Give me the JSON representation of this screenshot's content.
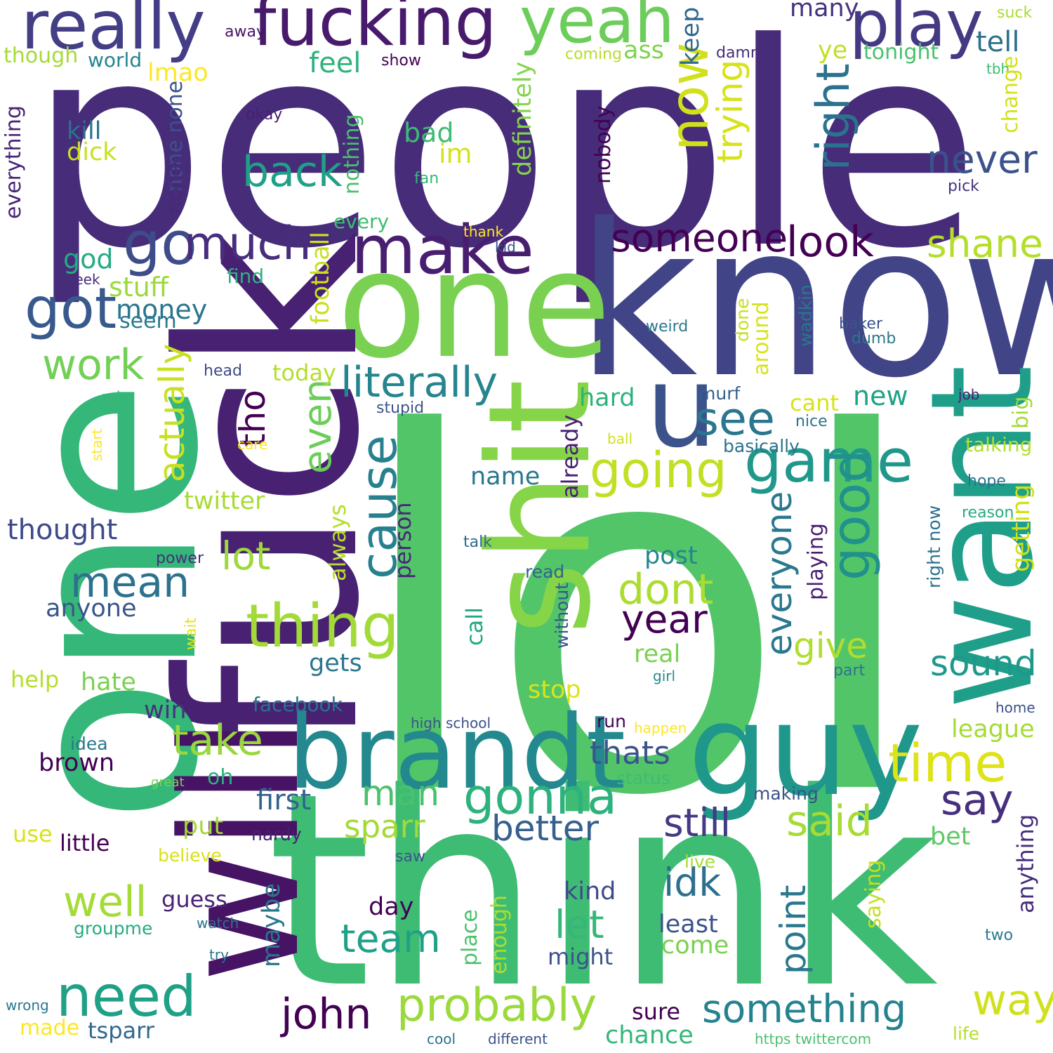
{
  "palette": [
    "#472c7a",
    "#3b528b",
    "#2c728e",
    "#21918c",
    "#28ae80",
    "#5ec962",
    "#addc30",
    "#d8e219",
    "#fde725",
    "#440154"
  ],
  "words": [
    {
      "text": "people",
      "c": "#472c7a"
    },
    {
      "text": "lol",
      "c": "#52c569"
    },
    {
      "text": "think",
      "c": "#3fbc73"
    },
    {
      "text": "know",
      "c": "#414487"
    },
    {
      "text": "one",
      "c": "#7ad151"
    },
    {
      "text": "fuck",
      "c": "#482173"
    },
    {
      "text": "one",
      "c": "#35b779"
    },
    {
      "text": "will",
      "c": "#471365"
    },
    {
      "text": "shit",
      "c": "#86d549"
    },
    {
      "text": "want",
      "c": "#1f9e89"
    },
    {
      "text": "guy",
      "c": "#1f988b"
    },
    {
      "text": "brandt",
      "c": "#23898e"
    },
    {
      "text": "u",
      "c": "#3b528b"
    },
    {
      "text": "really",
      "c": "#433e85"
    },
    {
      "text": "fucking",
      "c": "#481a6c"
    },
    {
      "text": "yeah",
      "c": "#6ccd5a"
    },
    {
      "text": "play",
      "c": "#443a83"
    },
    {
      "text": "make",
      "c": "#481f70"
    },
    {
      "text": "go",
      "c": "#3e4c8a"
    },
    {
      "text": "got",
      "c": "#38598c"
    },
    {
      "text": "much",
      "c": "#472d7b"
    },
    {
      "text": "now",
      "c": "#d0e11c"
    },
    {
      "text": "game",
      "c": "#1f988b"
    },
    {
      "text": "good",
      "c": "#21918c"
    },
    {
      "text": "thing",
      "c": "#a2da37"
    },
    {
      "text": "cause",
      "c": "#27808e"
    },
    {
      "text": "literally",
      "c": "#25858e"
    },
    {
      "text": "someone",
      "c": "#440154"
    },
    {
      "text": "look",
      "c": "#440154"
    },
    {
      "text": "right",
      "c": "#2c728e"
    },
    {
      "text": "never",
      "c": "#3b528b"
    },
    {
      "text": "shane",
      "c": "#b5de2b"
    },
    {
      "text": "back",
      "c": "#1fa188"
    },
    {
      "text": "work",
      "c": "#73d056"
    },
    {
      "text": "going",
      "c": "#c2df23"
    },
    {
      "text": "see",
      "c": "#2a768e"
    },
    {
      "text": "time",
      "c": "#dde318"
    },
    {
      "text": "need",
      "c": "#1fa187"
    },
    {
      "text": "probably",
      "c": "#9bd93c"
    },
    {
      "text": "gonna",
      "c": "#2db27d"
    },
    {
      "text": "take",
      "c": "#98d83e"
    },
    {
      "text": "mean",
      "c": "#2c728e"
    },
    {
      "text": "lot",
      "c": "#9dd93b"
    },
    {
      "text": "dont",
      "c": "#addc30"
    },
    {
      "text": "year",
      "c": "#440154"
    },
    {
      "text": "even",
      "c": "#6ccd5a"
    },
    {
      "text": "actually",
      "c": "#c8e020"
    },
    {
      "text": "tho",
      "c": "#440154"
    },
    {
      "text": "trying",
      "c": "#d8e219"
    },
    {
      "text": "everyone",
      "c": "#2a788e"
    },
    {
      "text": "sound",
      "c": "#1f988b"
    },
    {
      "text": "give",
      "c": "#b0dd2f"
    },
    {
      "text": "still",
      "c": "#443983"
    },
    {
      "text": "said",
      "c": "#a8db34"
    },
    {
      "text": "say",
      "c": "#46307e"
    },
    {
      "text": "better",
      "c": "#355f8d"
    },
    {
      "text": "something",
      "c": "#25838e"
    },
    {
      "text": "way",
      "c": "#d0e11c"
    },
    {
      "text": "john",
      "c": "#440154"
    },
    {
      "text": "team",
      "c": "#1fa188"
    },
    {
      "text": "well",
      "c": "#a5db36"
    },
    {
      "text": "idk",
      "c": "#2d708e"
    },
    {
      "text": "let",
      "c": "#35b779"
    },
    {
      "text": "point",
      "c": "#2a788e"
    },
    {
      "text": "man",
      "c": "#4ac16d"
    },
    {
      "text": "sparr",
      "c": "#a2da37"
    },
    {
      "text": "thats",
      "c": "#3a548c"
    },
    {
      "text": "first",
      "c": "#33638d"
    },
    {
      "text": "feel",
      "c": "#2db27d"
    },
    {
      "text": "ass",
      "c": "#7fd34e"
    },
    {
      "text": "keep",
      "c": "#31688e"
    },
    {
      "text": "tell",
      "c": "#2d708e"
    },
    {
      "text": "many",
      "c": "#46327e"
    },
    {
      "text": "ye",
      "c": "#c2df23"
    },
    {
      "text": "tonight",
      "c": "#4ac16d"
    },
    {
      "text": "suck",
      "c": "#addc30"
    },
    {
      "text": "tbh",
      "c": "#3dbc74"
    },
    {
      "text": "change",
      "c": "#d2e21b"
    },
    {
      "text": "pick",
      "c": "#46337f"
    },
    {
      "text": "damn",
      "c": "#472d7b"
    },
    {
      "text": "coming",
      "c": "#b5de2b"
    },
    {
      "text": "away",
      "c": "#471365"
    },
    {
      "text": "show",
      "c": "#440154"
    },
    {
      "text": "though",
      "c": "#a5db36"
    },
    {
      "text": "world",
      "c": "#25858e"
    },
    {
      "text": "lmao",
      "c": "#fde725"
    },
    {
      "text": "everything",
      "c": "#482475"
    },
    {
      "text": "kill",
      "c": "#2c728e"
    },
    {
      "text": "dick",
      "c": "#c8e020"
    },
    {
      "text": "none none",
      "c": "#3b528b"
    },
    {
      "text": "none",
      "c": "#482878"
    },
    {
      "text": "god",
      "c": "#25ab82"
    },
    {
      "text": "stuff",
      "c": "#9bd93c"
    },
    {
      "text": "money",
      "c": "#2a768e"
    },
    {
      "text": "seem",
      "c": "#2a788e"
    },
    {
      "text": "week",
      "c": "#472d7b"
    },
    {
      "text": "okay",
      "c": "#481f70"
    },
    {
      "text": "bad",
      "c": "#3dbc74"
    },
    {
      "text": "im",
      "c": "#d5e21a"
    },
    {
      "text": "fan",
      "c": "#35b779"
    },
    {
      "text": "every",
      "c": "#3fbc73"
    },
    {
      "text": "nothing",
      "c": "#4ac16d"
    },
    {
      "text": "definitely",
      "c": "#84d44b"
    },
    {
      "text": "thank",
      "c": "#fde725"
    },
    {
      "text": "kid",
      "c": "#3b528b"
    },
    {
      "text": "find",
      "c": "#2db27d"
    },
    {
      "text": "nobody",
      "c": "#440154"
    },
    {
      "text": "football",
      "c": "#c8e020"
    },
    {
      "text": "weird",
      "c": "#2a788e"
    },
    {
      "text": "baker",
      "c": "#3a548c"
    },
    {
      "text": "dumb",
      "c": "#2a788e"
    },
    {
      "text": "wadkin",
      "c": "#2a768e"
    },
    {
      "text": "done",
      "c": "#c8e020"
    },
    {
      "text": "around",
      "c": "#d8e219"
    },
    {
      "text": "head",
      "c": "#3e4989"
    },
    {
      "text": "today",
      "c": "#b5de2b"
    },
    {
      "text": "rule",
      "c": "#35b779"
    },
    {
      "text": "stupid",
      "c": "#3b528b"
    },
    {
      "text": "start",
      "c": "#fde725"
    },
    {
      "text": "care",
      "c": "#fde725"
    },
    {
      "text": "hard",
      "c": "#2db27d"
    },
    {
      "text": "murf",
      "c": "#355f8d"
    },
    {
      "text": "cant",
      "c": "#d8e219"
    },
    {
      "text": "new",
      "c": "#1fa188"
    },
    {
      "text": "job",
      "c": "#481f70"
    },
    {
      "text": "big",
      "c": "#a2da37"
    },
    {
      "text": "nice",
      "c": "#2c728e"
    },
    {
      "text": "basically",
      "c": "#2c728e"
    },
    {
      "text": "ball",
      "c": "#d0e11c"
    },
    {
      "text": "talking",
      "c": "#b5de2b"
    },
    {
      "text": "hope",
      "c": "#2c728e"
    },
    {
      "text": "reason",
      "c": "#25ab82"
    },
    {
      "text": "getting",
      "c": "#d0e11c"
    },
    {
      "text": "right now",
      "c": "#2d708e"
    },
    {
      "text": "already",
      "c": "#482173"
    },
    {
      "text": "name",
      "c": "#2a788e"
    },
    {
      "text": "twitter",
      "c": "#a8db34"
    },
    {
      "text": "thought",
      "c": "#3e4a89"
    },
    {
      "text": "anyone",
      "c": "#39568c"
    },
    {
      "text": "always",
      "c": "#b5de2b"
    },
    {
      "text": "person",
      "c": "#482878"
    },
    {
      "text": "talk",
      "c": "#31688e"
    },
    {
      "text": "power",
      "c": "#472d7b"
    },
    {
      "text": "read",
      "c": "#33638d"
    },
    {
      "text": "post",
      "c": "#25858e"
    },
    {
      "text": "playing",
      "c": "#481f70"
    },
    {
      "text": "without",
      "c": "#39568c"
    },
    {
      "text": "call",
      "c": "#22a884"
    },
    {
      "text": "gets",
      "c": "#2a768e"
    },
    {
      "text": "real",
      "c": "#7ad151"
    },
    {
      "text": "girl",
      "c": "#23898e"
    },
    {
      "text": "part",
      "c": "#2c728e"
    },
    {
      "text": "help",
      "c": "#b5de2b"
    },
    {
      "text": "hate",
      "c": "#7ad151"
    },
    {
      "text": "wait",
      "c": "#e5e419"
    },
    {
      "text": "stop",
      "c": "#dde318"
    },
    {
      "text": "win",
      "c": "#46327e"
    },
    {
      "text": "facebook",
      "c": "#2c728e"
    },
    {
      "text": "home",
      "c": "#3b528b"
    },
    {
      "text": "league",
      "c": "#a5db36"
    },
    {
      "text": "high school",
      "c": "#3b528b"
    },
    {
      "text": "run",
      "c": "#440154"
    },
    {
      "text": "happen",
      "c": "#fde725"
    },
    {
      "text": "idea",
      "c": "#2a768e"
    },
    {
      "text": "brown",
      "c": "#440154"
    },
    {
      "text": "great",
      "c": "#7ad151"
    },
    {
      "text": "oh",
      "c": "#2db27d"
    },
    {
      "text": "status",
      "c": "#3fbc73"
    },
    {
      "text": "making",
      "c": "#3b528b"
    },
    {
      "text": "use",
      "c": "#d8e219"
    },
    {
      "text": "little",
      "c": "#440154"
    },
    {
      "text": "put",
      "c": "#a2da37"
    },
    {
      "text": "nardy",
      "c": "#481f70"
    },
    {
      "text": "believe",
      "c": "#d8e219"
    },
    {
      "text": "bet",
      "c": "#5ec962"
    },
    {
      "text": "anything",
      "c": "#472d7b"
    },
    {
      "text": "saw",
      "c": "#39568c"
    },
    {
      "text": "live",
      "c": "#a5db36"
    },
    {
      "text": "guess",
      "c": "#482475"
    },
    {
      "text": "day",
      "c": "#440154"
    },
    {
      "text": "kind",
      "c": "#3e4a89"
    },
    {
      "text": "groupme",
      "c": "#25ab82"
    },
    {
      "text": "watch",
      "c": "#2c728e"
    },
    {
      "text": "maybe",
      "c": "#2a768e"
    },
    {
      "text": "place",
      "c": "#4ac16d"
    },
    {
      "text": "enough",
      "c": "#addc30"
    },
    {
      "text": "least",
      "c": "#3b528b"
    },
    {
      "text": "come",
      "c": "#7ad151"
    },
    {
      "text": "saying",
      "c": "#c2df23"
    },
    {
      "text": "two",
      "c": "#2a788e"
    },
    {
      "text": "might",
      "c": "#3b528b"
    },
    {
      "text": "try",
      "c": "#2c728e"
    },
    {
      "text": "wrong",
      "c": "#2a788e"
    },
    {
      "text": "made",
      "c": "#fde725"
    },
    {
      "text": "tsparr",
      "c": "#31688e"
    },
    {
      "text": "cool",
      "c": "#2c728e"
    },
    {
      "text": "different",
      "c": "#3b528b"
    },
    {
      "text": "sure",
      "c": "#440154"
    },
    {
      "text": "chance",
      "c": "#35b779"
    },
    {
      "text": "https twittercom",
      "c": "#4ac16d"
    },
    {
      "text": "life",
      "c": "#b5de2b"
    }
  ]
}
